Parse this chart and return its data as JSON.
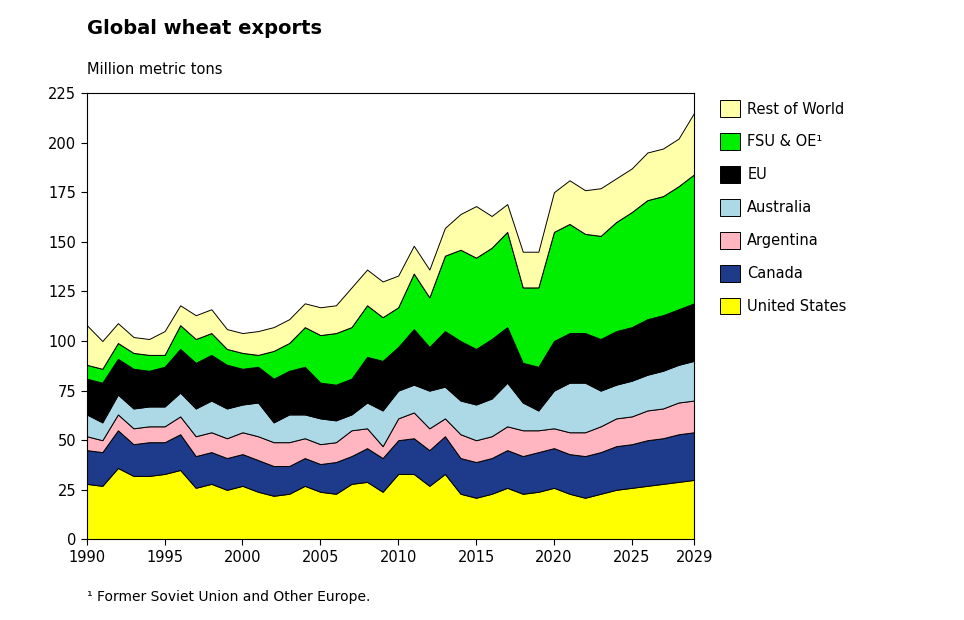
{
  "title": "Global wheat exports",
  "ylabel": "Million metric tons",
  "footnote": "¹ Former Soviet Union and Other Europe.",
  "xlim": [
    1990,
    2029
  ],
  "ylim": [
    0,
    225
  ],
  "yticks": [
    0,
    25,
    50,
    75,
    100,
    125,
    150,
    175,
    200,
    225
  ],
  "xticks": [
    1990,
    1995,
    2000,
    2005,
    2010,
    2015,
    2020,
    2025,
    2029
  ],
  "colors": {
    "United States": "#FFFF00",
    "Canada": "#1E3A8A",
    "Argentina": "#FFB6C1",
    "Australia": "#ADD8E6",
    "EU": "#000000",
    "FSU & OE": "#00EE00",
    "Rest of World": "#FFFFAA"
  },
  "legend_labels": [
    "Rest of World",
    "FSU & OE¹",
    "EU",
    "Australia",
    "Argentina",
    "Canada",
    "United States"
  ],
  "legend_colors": [
    "#FFFFAA",
    "#00EE00",
    "#000000",
    "#ADD8E6",
    "#FFB6C1",
    "#1E3A8A",
    "#FFFF00"
  ],
  "years": [
    1990,
    1991,
    1992,
    1993,
    1994,
    1995,
    1996,
    1997,
    1998,
    1999,
    2000,
    2001,
    2002,
    2003,
    2004,
    2005,
    2006,
    2007,
    2008,
    2009,
    2010,
    2011,
    2012,
    2013,
    2014,
    2015,
    2016,
    2017,
    2018,
    2019,
    2020,
    2021,
    2022,
    2023,
    2024,
    2025,
    2026,
    2027,
    2028,
    2029
  ],
  "data": {
    "United States": [
      28,
      27,
      36,
      32,
      32,
      33,
      35,
      26,
      28,
      25,
      27,
      24,
      22,
      23,
      27,
      24,
      23,
      28,
      29,
      24,
      33,
      33,
      27,
      33,
      23,
      21,
      23,
      26,
      23,
      24,
      26,
      23,
      21,
      23,
      25,
      26,
      27,
      28,
      29,
      30
    ],
    "Canada": [
      17,
      17,
      19,
      16,
      17,
      16,
      18,
      16,
      16,
      16,
      16,
      16,
      15,
      14,
      14,
      14,
      16,
      14,
      17,
      17,
      17,
      18,
      18,
      19,
      18,
      18,
      18,
      19,
      19,
      20,
      20,
      20,
      21,
      21,
      22,
      22,
      23,
      23,
      24,
      24
    ],
    "Argentina": [
      7,
      6,
      8,
      8,
      8,
      8,
      9,
      10,
      10,
      10,
      11,
      12,
      12,
      12,
      10,
      10,
      10,
      13,
      10,
      6,
      11,
      13,
      11,
      9,
      12,
      11,
      11,
      12,
      13,
      11,
      10,
      11,
      12,
      13,
      14,
      14,
      15,
      15,
      16,
      16
    ],
    "Australia": [
      11,
      9,
      10,
      10,
      10,
      10,
      12,
      14,
      16,
      15,
      14,
      17,
      10,
      14,
      12,
      13,
      11,
      8,
      13,
      18,
      14,
      14,
      19,
      16,
      17,
      18,
      19,
      22,
      14,
      10,
      19,
      25,
      25,
      18,
      17,
      18,
      18,
      19,
      19,
      20
    ],
    "EU": [
      18,
      20,
      18,
      20,
      18,
      20,
      22,
      23,
      23,
      22,
      18,
      18,
      22,
      22,
      24,
      18,
      18,
      18,
      23,
      25,
      22,
      28,
      22,
      28,
      30,
      28,
      30,
      28,
      20,
      22,
      25,
      25,
      25,
      26,
      27,
      27,
      28,
      28,
      28,
      29
    ],
    "FSU & OE": [
      7,
      7,
      8,
      8,
      8,
      6,
      12,
      12,
      11,
      8,
      8,
      6,
      14,
      14,
      20,
      24,
      26,
      26,
      26,
      22,
      20,
      28,
      25,
      38,
      46,
      46,
      46,
      48,
      38,
      40,
      55,
      55,
      50,
      52,
      55,
      58,
      60,
      60,
      62,
      65
    ],
    "Rest of World": [
      20,
      14,
      10,
      8,
      8,
      12,
      10,
      12,
      12,
      10,
      10,
      12,
      12,
      12,
      12,
      14,
      14,
      20,
      18,
      18,
      16,
      14,
      14,
      14,
      18,
      26,
      16,
      14,
      18,
      18,
      20,
      22,
      22,
      24,
      22,
      22,
      24,
      24,
      24,
      31
    ]
  }
}
